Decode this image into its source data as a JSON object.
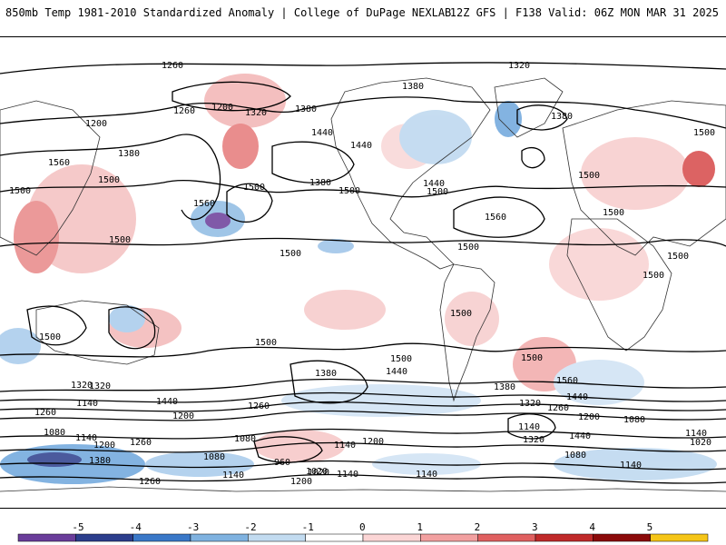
{
  "header": {
    "title": "850mb Temp 1981-2010 Standardized Anomaly | College of DuPage NEXLAB",
    "run_info": "12Z GFS | F138 Valid: 06Z MON MAR 31 2025"
  },
  "colorbar": {
    "labels": [
      "-5",
      "-4",
      "-3",
      "-2",
      "-1",
      "0",
      "1",
      "2",
      "3",
      "4",
      "5"
    ],
    "colors": [
      "#6a3d9a",
      "#2c3e8c",
      "#3a78c8",
      "#7fb2e0",
      "#c2dbf0",
      "#ffffff",
      "#fbd5d5",
      "#f2a0a0",
      "#e06060",
      "#c02a2a",
      "#8b0a0a",
      "#f5c518"
    ]
  },
  "map": {
    "contour_labels": [
      "1260",
      "1320",
      "1380",
      "1200",
      "1260",
      "1320",
      "1380",
      "1200",
      "1440",
      "1440",
      "1500",
      "1380",
      "1560",
      "1500",
      "1380",
      "1500",
      "1440",
      "1500",
      "1560",
      "1500",
      "1380",
      "1500",
      "1500",
      "1500",
      "1500",
      "1500",
      "1500",
      "1500",
      "1500",
      "1500",
      "1500",
      "1500",
      "1560",
      "1500",
      "1380",
      "1440",
      "1320",
      "1440",
      "1260",
      "1200",
      "1140",
      "1080",
      "1020",
      "960",
      "1020",
      "1080",
      "1140",
      "1200",
      "1260",
      "1320",
      "1380",
      "1440",
      "1500",
      "1560",
      "1320",
      "1260",
      "1200",
      "1140",
      "1080",
      "1200",
      "1260",
      "1140",
      "1380",
      "1140",
      "1080",
      "1140",
      "1020",
      "1140",
      "1200",
      "1260",
      "1440",
      "1320",
      "1140",
      "1080",
      "1140"
    ]
  }
}
